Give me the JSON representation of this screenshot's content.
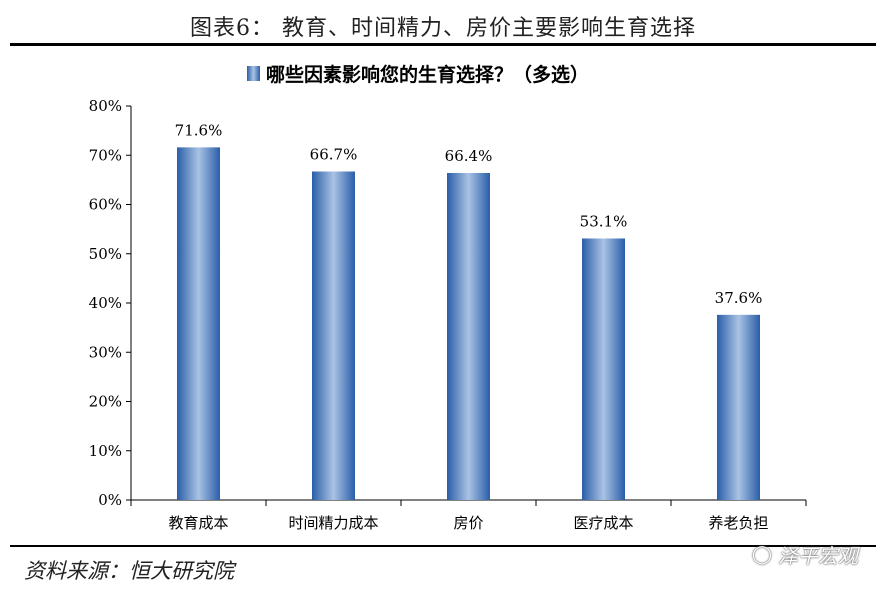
{
  "figure": {
    "title": "图表6：  教育、时间精力、房价主要影响生育选择",
    "source": "资料来源：恒大研究院",
    "watermark": "泽平宏观"
  },
  "colors": {
    "bar_edge": "#2a5ea8",
    "bar_center": "#a9c3e4",
    "axis": "#000000"
  },
  "chart_data": {
    "type": "bar",
    "title": "",
    "categories": [
      "教育成本",
      "时间精力成本",
      "房价",
      "医疗成本",
      "养老负担"
    ],
    "series": [
      {
        "name": "哪些因素影响您的生育选择？（多选）",
        "values": [
          71.6,
          66.7,
          66.4,
          53.1,
          37.6
        ],
        "data_labels": [
          "71.6%",
          "66.7%",
          "66.4%",
          "53.1%",
          "37.6%"
        ]
      }
    ],
    "yticks": [
      "0%",
      "10%",
      "20%",
      "30%",
      "40%",
      "50%",
      "60%",
      "70%",
      "80%"
    ],
    "ylim": [
      0,
      80
    ],
    "xlabel": "",
    "ylabel": "",
    "grid": false,
    "legend": "top"
  }
}
